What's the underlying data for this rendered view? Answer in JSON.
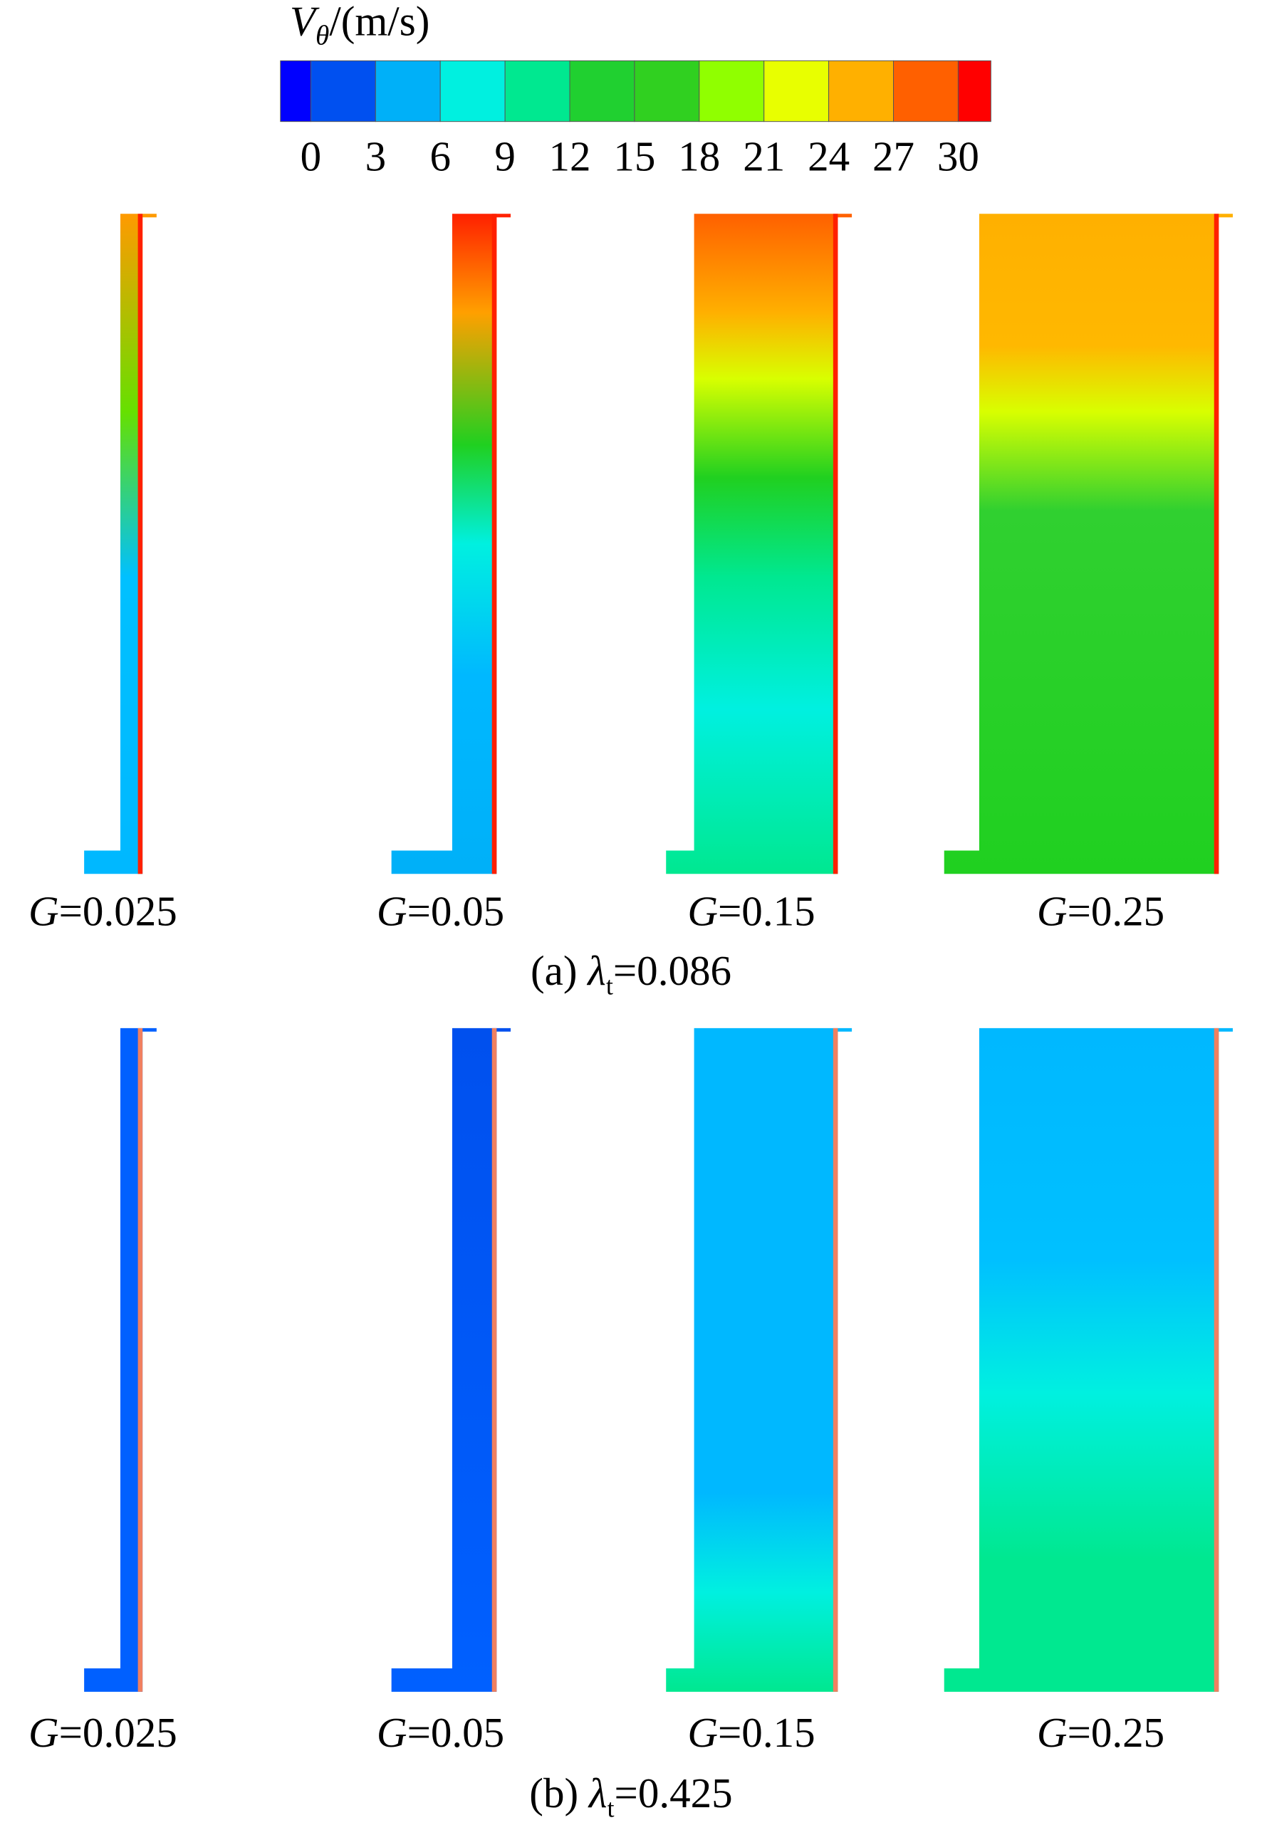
{
  "colorbar": {
    "symbol": "V",
    "subscript": "θ",
    "unit": "/(m/s)",
    "ticks": [
      0,
      3,
      6,
      9,
      12,
      15,
      18,
      21,
      24,
      27,
      30
    ]
  },
  "rows": [
    {
      "caption": {
        "prefix": "(a) ",
        "symbol": "λ",
        "subscript": "t",
        "value": "=0.086"
      },
      "panels": [
        {
          "variable": "G",
          "value": "=0.025"
        },
        {
          "variable": "G",
          "value": "=0.05"
        },
        {
          "variable": "G",
          "value": "=0.15"
        },
        {
          "variable": "G",
          "value": "=0.25"
        }
      ]
    },
    {
      "caption": {
        "prefix": "(b) ",
        "symbol": "λ",
        "subscript": "t",
        "value": "=0.425"
      },
      "panels": [
        {
          "variable": "G",
          "value": "=0.025"
        },
        {
          "variable": "G",
          "value": "=0.05"
        },
        {
          "variable": "G",
          "value": "=0.15"
        },
        {
          "variable": "G",
          "value": "=0.25"
        }
      ]
    }
  ]
}
